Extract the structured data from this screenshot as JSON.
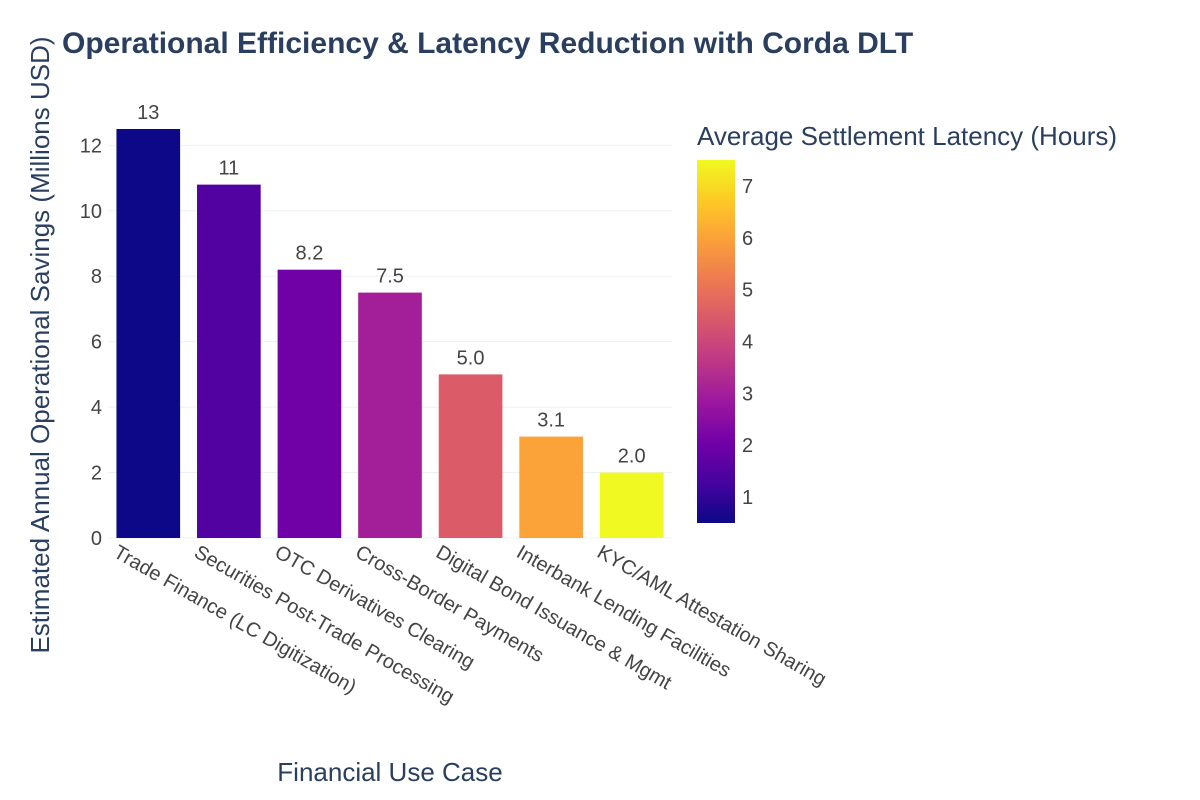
{
  "chart_data": {
    "type": "bar",
    "title": "Operational Efficiency & Latency Reduction with Corda DLT",
    "xlabel": "Financial Use Case",
    "ylabel": "Estimated Annual Operational Savings (Millions USD)",
    "ylim": [
      0,
      12.5
    ],
    "yticks": [
      0,
      2,
      4,
      6,
      8,
      10,
      12
    ],
    "grid": true,
    "categories": [
      "Trade Finance (LC Digitization)",
      "Securities Post-Trade Processing",
      "OTC Derivatives Clearing",
      "Cross-Border Payments",
      "Digital Bond Issuance & Mgmt",
      "Interbank Lending Facilities",
      "KYC/AML Attestation Sharing"
    ],
    "values": [
      12.5,
      10.8,
      8.2,
      7.5,
      5.0,
      3.1,
      2.0
    ],
    "data_labels": [
      "13",
      "11",
      "8.2",
      "7.5",
      "5.0",
      "3.1",
      "2.0"
    ],
    "latency_hours": [
      0.5,
      1.5,
      2.0,
      3.0,
      4.5,
      6.0,
      7.5
    ],
    "colorbar": {
      "title": "Average Settlement Latency (Hours)",
      "range": [
        0.5,
        7.5
      ],
      "ticks": [
        1,
        2,
        3,
        4,
        5,
        6,
        7
      ],
      "colorscale": "plasma"
    }
  }
}
